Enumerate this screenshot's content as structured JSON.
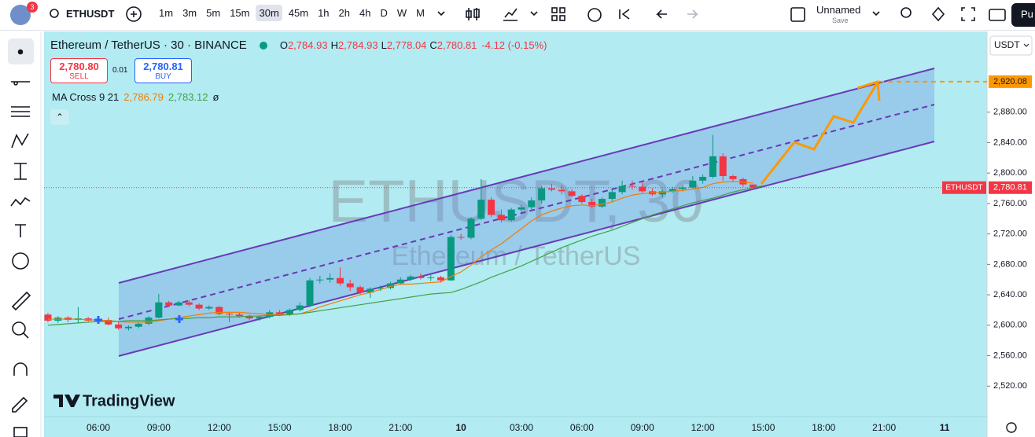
{
  "toolbar": {
    "badge": "3",
    "symbol": "ETHUSDT",
    "intervals": [
      "1m",
      "3m",
      "5m",
      "15m",
      "30m",
      "45m",
      "1h",
      "2h",
      "4h",
      "D",
      "W",
      "M"
    ],
    "layout_name": "Unnamed",
    "save": "Save",
    "publish": "Pu"
  },
  "legend": {
    "title": "Ethereum / TetherUS · 30 · BINANCE",
    "ohlc": [
      {
        "label": "O",
        "value": "2,784.93"
      },
      {
        "label": "H",
        "value": "2,784.93"
      },
      {
        "label": "L",
        "value": "2,778.04"
      },
      {
        "label": "C",
        "value": "2,780.81"
      }
    ],
    "change": "-4.12 (-0.15%)",
    "sell_price": "2,780.80",
    "sell": "SELL",
    "spread": "0.01",
    "buy_price": "2,780.81",
    "buy": "BUY",
    "indicator": "MA Cross 9 21",
    "indicator_icon": "ø"
  },
  "currency": "USDT",
  "watermark": [
    "ETHUSDT, 30",
    "Ethereum / TetherUS"
  ],
  "logo": "TradingView",
  "chart_data": {
    "type": "candlestick",
    "categories": [
      null,
      null,
      null,
      null,
      null,
      "06:00",
      null,
      null,
      null,
      null,
      null,
      "09:00",
      null,
      null,
      null,
      null,
      null,
      "12:00",
      null,
      null,
      null,
      null,
      null,
      "15:00",
      null,
      null,
      null,
      null,
      null,
      "18:00",
      null,
      null,
      null,
      null,
      null,
      "21:00",
      null,
      null,
      null,
      null,
      null,
      "10",
      null,
      null,
      null,
      null,
      null,
      "03:00",
      null,
      null,
      null,
      null,
      null,
      "06:00",
      null,
      null,
      null,
      null,
      null,
      "09:00",
      null,
      null,
      null,
      null,
      null,
      "12:00",
      null,
      null,
      null,
      null,
      null,
      "15:00",
      null,
      null,
      null,
      null,
      null,
      "18:00",
      null,
      null,
      null,
      null,
      null,
      "21:00",
      null,
      null,
      null,
      null,
      null,
      "11",
      null,
      null
    ],
    "open": [
      2614,
      2606,
      2610,
      2607,
      2609,
      2606,
      2607,
      2601,
      2596,
      2598,
      2602,
      2610,
      2630,
      2626,
      2630,
      2627,
      2622,
      2624,
      2615,
      2614,
      2612,
      2609,
      2611,
      2617,
      2614,
      2620,
      2626,
      2659,
      2660,
      2662,
      2655,
      2650,
      2643,
      2648,
      2649,
      2655,
      2660,
      2664,
      2662,
      2663,
      2659,
      2716,
      2715,
      2740,
      2765,
      2745,
      2738,
      2752,
      2755,
      2764,
      2780,
      2778,
      2776,
      2770,
      2762,
      2756,
      2766,
      2775,
      2783,
      2782,
      2776,
      2772,
      2776,
      2779,
      2781,
      2790,
      2795,
      2822,
      2796,
      2792,
      2784.93,
      null,
      null,
      null,
      null,
      null,
      null,
      null,
      null,
      null,
      null,
      null,
      null,
      null,
      null,
      null,
      null,
      null,
      null,
      null,
      null,
      null
    ],
    "high": [
      2616,
      2612,
      2612,
      2624,
      2611,
      2612,
      2610,
      2604,
      2600,
      2604,
      2612,
      2641,
      2632,
      2632,
      2633,
      2629,
      2626,
      2625,
      2618,
      2617,
      2614,
      2613,
      2620,
      2620,
      2622,
      2630,
      2662,
      2665,
      2668,
      2676,
      2660,
      2652,
      2650,
      2652,
      2657,
      2663,
      2666,
      2668,
      2666,
      2665,
      2719,
      2720,
      2742,
      2792,
      2768,
      2752,
      2754,
      2758,
      2768,
      2783,
      2786,
      2784,
      2779,
      2772,
      2766,
      2768,
      2778,
      2790,
      2790,
      2788,
      2780,
      2778,
      2782,
      2784,
      2796,
      2798,
      2850,
      2826,
      2798,
      2794,
      2784.93,
      null,
      null,
      null,
      null,
      null,
      null,
      null,
      null,
      null,
      null,
      null,
      null,
      null,
      null,
      null,
      null,
      null,
      null,
      null,
      null,
      null
    ],
    "low": [
      2604,
      2603,
      2604,
      2603,
      2604,
      2602,
      2600,
      2594,
      2593,
      2596,
      2600,
      2609,
      2624,
      2625,
      2625,
      2620,
      2620,
      2613,
      2604,
      2610,
      2607,
      2606,
      2609,
      2612,
      2612,
      2618,
      2624,
      2655,
      2656,
      2652,
      2645,
      2640,
      2636,
      2645,
      2647,
      2653,
      2658,
      2660,
      2658,
      2656,
      2658,
      2712,
      2713,
      2738,
      2742,
      2735,
      2736,
      2748,
      2750,
      2760,
      2776,
      2772,
      2768,
      2760,
      2754,
      2754,
      2762,
      2772,
      2778,
      2774,
      2770,
      2768,
      2774,
      2776,
      2780,
      2786,
      2793,
      2790,
      2788,
      2782,
      2778.04,
      null,
      null,
      null,
      null,
      null,
      null,
      null,
      null,
      null,
      null,
      null,
      null,
      null,
      null,
      null,
      null,
      null,
      null,
      null,
      null,
      null
    ],
    "close": [
      2606,
      2610,
      2607,
      2609,
      2606,
      2607,
      2601,
      2596,
      2598,
      2602,
      2610,
      2630,
      2626,
      2630,
      2627,
      2622,
      2624,
      2615,
      2614,
      2612,
      2609,
      2611,
      2617,
      2614,
      2620,
      2626,
      2659,
      2660,
      2662,
      2655,
      2650,
      2643,
      2648,
      2649,
      2655,
      2660,
      2664,
      2662,
      2663,
      2659,
      2716,
      2715,
      2740,
      2765,
      2745,
      2738,
      2752,
      2755,
      2764,
      2780,
      2778,
      2776,
      2770,
      2762,
      2756,
      2766,
      2775,
      2783,
      2782,
      2776,
      2772,
      2776,
      2779,
      2781,
      2790,
      2795,
      2822,
      2796,
      2792,
      2785,
      2780.81,
      null,
      null,
      null,
      null,
      null,
      null,
      null,
      null,
      null,
      null,
      null,
      null,
      null,
      null,
      null,
      null,
      null,
      null,
      null,
      null,
      null
    ],
    "up_color": "#089981",
    "down_color": "#f23645",
    "moving_averages": [
      {
        "color": "#f57c00",
        "last_label": "2,786.79",
        "values": [
          2608,
          2608,
          2608,
          2608,
          2607,
          2607,
          2606,
          2605,
          2604,
          2604,
          2604,
          2606,
          2608,
          2610,
          2612,
          2614,
          2616,
          2617,
          2617,
          2617,
          2616,
          2615,
          2614,
          2614,
          2614,
          2615,
          2619,
          2624,
          2628,
          2632,
          2636,
          2640,
          2643,
          2647,
          2651,
          2654,
          2654,
          2655,
          2656,
          2657,
          2664,
          2670,
          2679,
          2690,
          2699,
          2707,
          2717,
          2727,
          2737,
          2745,
          2750,
          2754,
          2757,
          2758,
          2757,
          2759,
          2762,
          2767,
          2771,
          2773,
          2774,
          2775,
          2776,
          2777,
          2779,
          2781,
          2786,
          2788,
          2789,
          2788,
          2786.79,
          null,
          null,
          null,
          null,
          null,
          null,
          null,
          null,
          null,
          null,
          null,
          null,
          null,
          null,
          null,
          null,
          null,
          null,
          null,
          null,
          null
        ]
      },
      {
        "color": "#43a047",
        "last_label": "2,783.12",
        "values": [
          2600,
          2601,
          2602,
          2603,
          2604,
          2605,
          2605,
          2605,
          2606,
          2606,
          2606,
          2607,
          2608,
          2609,
          2609,
          2610,
          2610,
          2611,
          2611,
          2611,
          2612,
          2612,
          2613,
          2613,
          2614,
          2615,
          2617,
          2619,
          2621,
          2623,
          2625,
          2627,
          2629,
          2631,
          2633,
          2635,
          2637,
          2639,
          2641,
          2642,
          2643,
          2647,
          2652,
          2657,
          2663,
          2668,
          2673,
          2678,
          2684,
          2690,
          2696,
          2702,
          2707,
          2712,
          2717,
          2721,
          2725,
          2730,
          2735,
          2740,
          2745,
          2749,
          2753,
          2757,
          2761,
          2764,
          2767,
          2771,
          2775,
          2778,
          2781,
          2783.12,
          null,
          null,
          null,
          null,
          null,
          null,
          null,
          null,
          null,
          null,
          null,
          null,
          null,
          null,
          null,
          null,
          null,
          null,
          null,
          null
        ]
      }
    ],
    "ylim": [
      2480,
      2984
    ],
    "yticks": [
      {
        "value": 2520,
        "label": "2,520.00"
      },
      {
        "value": 2560,
        "label": "2,560.00"
      },
      {
        "value": 2600,
        "label": "2,600.00"
      },
      {
        "value": 2640,
        "label": "2,640.00"
      },
      {
        "value": 2680,
        "label": "2,680.00"
      },
      {
        "value": 2720,
        "label": "2,720.00"
      },
      {
        "value": 2760,
        "label": "2,760.00"
      },
      {
        "value": 2800,
        "label": "2,800.00"
      },
      {
        "value": 2840,
        "label": "2,840.00"
      },
      {
        "value": 2880,
        "label": "2,880.00"
      }
    ],
    "last_price": {
      "value": 2780.81,
      "label": "2,780.81",
      "symbol": "ETHUSDT",
      "color": "#f23645"
    },
    "target": {
      "value": 2920.08,
      "label": "2,920.08",
      "color": "#ff9800"
    }
  }
}
